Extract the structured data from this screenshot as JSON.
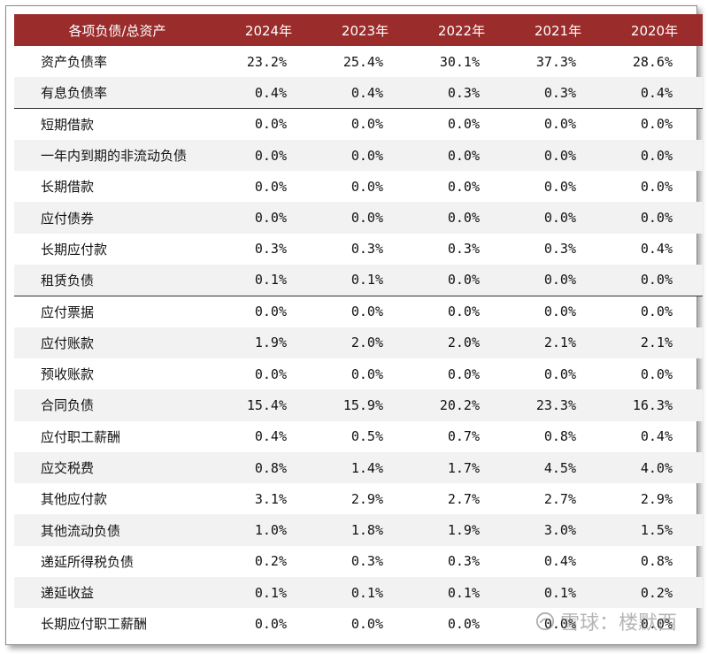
{
  "header": {
    "col0": "各项负债/总资产",
    "years": [
      "2024年",
      "2023年",
      "2022年",
      "2021年",
      "2020年"
    ]
  },
  "rows": [
    {
      "label": "资产负债率",
      "values": [
        "23.2%",
        "25.4%",
        "30.1%",
        "37.3%",
        "28.6%"
      ]
    },
    {
      "label": "有息负债率",
      "values": [
        "0.4%",
        "0.4%",
        "0.3%",
        "0.3%",
        "0.4%"
      ]
    },
    {
      "label": "短期借款",
      "values": [
        "0.0%",
        "0.0%",
        "0.0%",
        "0.0%",
        "0.0%"
      ]
    },
    {
      "label": "一年内到期的非流动负债",
      "values": [
        "0.0%",
        "0.0%",
        "0.0%",
        "0.0%",
        "0.0%"
      ]
    },
    {
      "label": "长期借款",
      "values": [
        "0.0%",
        "0.0%",
        "0.0%",
        "0.0%",
        "0.0%"
      ]
    },
    {
      "label": "应付债券",
      "values": [
        "0.0%",
        "0.0%",
        "0.0%",
        "0.0%",
        "0.0%"
      ]
    },
    {
      "label": "长期应付款",
      "values": [
        "0.3%",
        "0.3%",
        "0.3%",
        "0.3%",
        "0.4%"
      ]
    },
    {
      "label": "租赁负债",
      "values": [
        "0.1%",
        "0.1%",
        "0.0%",
        "0.0%",
        "0.0%"
      ]
    },
    {
      "label": "应付票据",
      "values": [
        "0.0%",
        "0.0%",
        "0.0%",
        "0.0%",
        "0.0%"
      ]
    },
    {
      "label": "应付账款",
      "values": [
        "1.9%",
        "2.0%",
        "2.0%",
        "2.1%",
        "2.1%"
      ]
    },
    {
      "label": "预收账款",
      "values": [
        "0.0%",
        "0.0%",
        "0.0%",
        "0.0%",
        "0.0%"
      ]
    },
    {
      "label": "合同负债",
      "values": [
        "15.4%",
        "15.9%",
        "20.2%",
        "23.3%",
        "16.3%"
      ]
    },
    {
      "label": "应付职工薪酬",
      "values": [
        "0.4%",
        "0.5%",
        "0.7%",
        "0.8%",
        "0.4%"
      ]
    },
    {
      "label": "应交税费",
      "values": [
        "0.8%",
        "1.4%",
        "1.7%",
        "4.5%",
        "4.0%"
      ]
    },
    {
      "label": "其他应付款",
      "values": [
        "3.1%",
        "2.9%",
        "2.7%",
        "2.7%",
        "2.9%"
      ]
    },
    {
      "label": "其他流动负债",
      "values": [
        "1.0%",
        "1.8%",
        "1.9%",
        "3.0%",
        "1.5%"
      ]
    },
    {
      "label": "递延所得税负债",
      "values": [
        "0.2%",
        "0.3%",
        "0.3%",
        "0.4%",
        "0.8%"
      ]
    },
    {
      "label": "递延收益",
      "values": [
        "0.1%",
        "0.1%",
        "0.1%",
        "0.1%",
        "0.2%"
      ]
    },
    {
      "label": "长期应付职工薪酬",
      "values": [
        "0.0%",
        "0.0%",
        "0.0%",
        "0.0%",
        "0.0%"
      ]
    }
  ],
  "watermark": {
    "text": "雪球：楼默西",
    "icon": "snowball-logo-icon"
  },
  "colors": {
    "header_bg": "#9b2c2c",
    "header_text": "#ffffff",
    "alt_row": "#f2f2f2"
  }
}
